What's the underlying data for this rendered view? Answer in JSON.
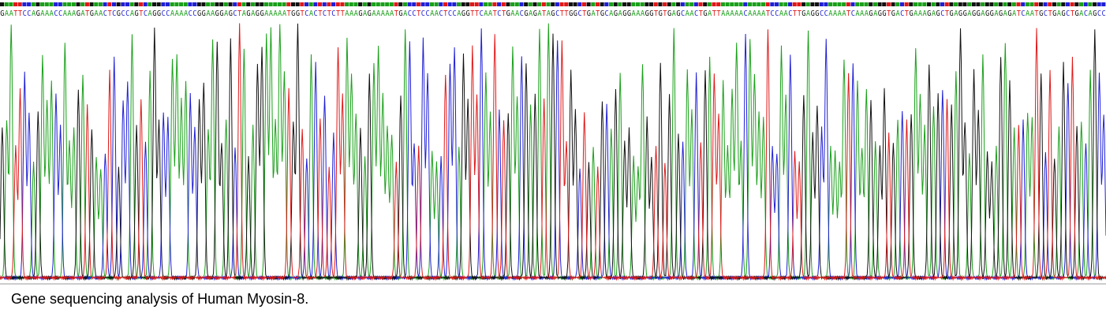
{
  "chart_data": {
    "type": "line",
    "title": "",
    "xlabel": "",
    "ylabel": "",
    "ylim": [
      0,
      1
    ],
    "grid": false,
    "legend": "none",
    "base_colors": {
      "A": "#1aa01a",
      "C": "#1f1fd6",
      "G": "#111111",
      "T": "#e01818"
    },
    "sequence": "GAATTCCAGAAACCAAAGATGAACTCGCCAGTCAGGCCAAAACCGGAAGGAGCTAGAGGAAAAATGGTCACTCTCTTAAAGAGAAAAATGACCTCCAACTCCAGGTTCAATCTGAACGAGATAGCTTGGCTGATGCAGAGGAAAGGTGTGAGCAACTGATTAAAAACAAAATCCAACTTGAGGCCAAAATCAAAGAGGTGACTGAAAGAGCTGAGGAGGAGGAGAGATCAATGCTGAGCTGACAGCC",
    "peak_heights": [
      0.95,
      0.72,
      0.58,
      0.85,
      0.42,
      0.5,
      0.78,
      0.6,
      0.9,
      0.55,
      0.68,
      0.82,
      0.48,
      0.63,
      0.97,
      0.52,
      0.66,
      0.75,
      0.88,
      0.44,
      0.61,
      0.79,
      0.57,
      0.93,
      0.5,
      0.7,
      0.84,
      0.46,
      0.64,
      0.91
    ],
    "x_unit": "base position"
  },
  "caption": "Gene sequencing analysis of Human Myosin-8."
}
